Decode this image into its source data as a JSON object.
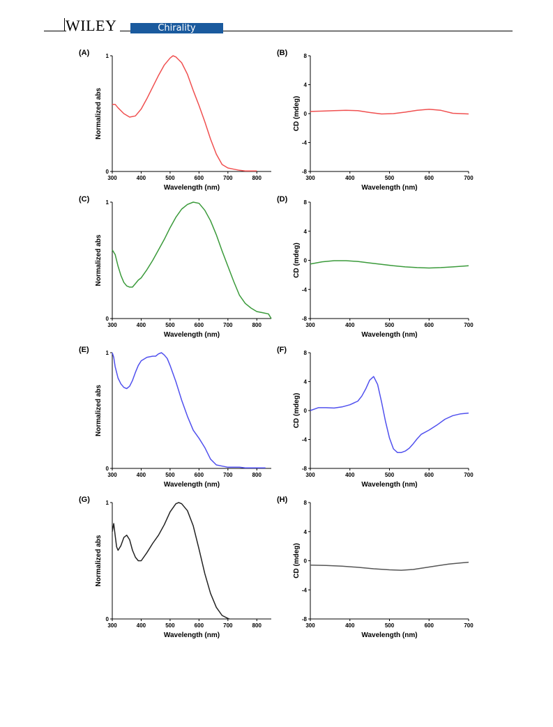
{
  "header": {
    "publisher": "WILEY",
    "journal": "Chirality",
    "colors": {
      "badge": "#1a5a9e",
      "rule": "#000000"
    }
  },
  "chart_data": [
    {
      "panel": "(A)",
      "type": "line",
      "xlabel": "Wavelength (nm)",
      "ylabel": "Normalized abs",
      "xlim": [
        300,
        850
      ],
      "ylim": [
        0,
        1
      ],
      "xticks": [
        300,
        400,
        500,
        600,
        700,
        800
      ],
      "yticks": [
        0,
        1
      ],
      "grid": false,
      "color": "#f05050",
      "series": [
        {
          "x": [
            300,
            310,
            320,
            340,
            360,
            380,
            400,
            420,
            440,
            460,
            480,
            500,
            510,
            520,
            540,
            560,
            580,
            600,
            620,
            640,
            660,
            680,
            700,
            720,
            740,
            760,
            780,
            800
          ],
          "y": [
            0.58,
            0.58,
            0.55,
            0.5,
            0.47,
            0.48,
            0.54,
            0.63,
            0.73,
            0.83,
            0.92,
            0.98,
            1.0,
            0.99,
            0.94,
            0.84,
            0.7,
            0.57,
            0.43,
            0.28,
            0.15,
            0.06,
            0.03,
            0.02,
            0.01,
            0.005,
            0.005,
            0.005
          ]
        }
      ]
    },
    {
      "panel": "(B)",
      "type": "line",
      "xlabel": "Wavelength (nm)",
      "ylabel": "CD (mdeg)",
      "xlim": [
        300,
        700
      ],
      "ylim": [
        -8,
        8
      ],
      "xticks": [
        300,
        400,
        500,
        600,
        700
      ],
      "yticks": [
        -8,
        -4,
        0,
        4,
        8
      ],
      "grid": false,
      "color": "#f05050",
      "series": [
        {
          "x": [
            300,
            330,
            360,
            390,
            420,
            450,
            480,
            510,
            540,
            570,
            600,
            630,
            660,
            700
          ],
          "y": [
            0.3,
            0.35,
            0.4,
            0.45,
            0.4,
            0.15,
            -0.05,
            0.0,
            0.2,
            0.45,
            0.6,
            0.45,
            0.05,
            -0.05
          ]
        }
      ]
    },
    {
      "panel": "(C)",
      "type": "line",
      "xlabel": "Wavelength (nm)",
      "ylabel": "Normalized abs",
      "xlim": [
        300,
        850
      ],
      "ylim": [
        0,
        1
      ],
      "xticks": [
        300,
        400,
        500,
        600,
        700,
        800
      ],
      "yticks": [
        0,
        1
      ],
      "grid": false,
      "color": "#3a9a3a",
      "series": [
        {
          "x": [
            300,
            310,
            320,
            330,
            340,
            350,
            360,
            370,
            380,
            390,
            400,
            420,
            440,
            460,
            480,
            500,
            520,
            540,
            560,
            580,
            600,
            620,
            640,
            660,
            680,
            700,
            720,
            740,
            760,
            780,
            800,
            820,
            840,
            850
          ],
          "y": [
            0.59,
            0.55,
            0.45,
            0.37,
            0.31,
            0.28,
            0.27,
            0.27,
            0.3,
            0.33,
            0.35,
            0.42,
            0.5,
            0.59,
            0.68,
            0.78,
            0.87,
            0.94,
            0.98,
            1.0,
            0.99,
            0.93,
            0.84,
            0.72,
            0.58,
            0.45,
            0.32,
            0.2,
            0.13,
            0.09,
            0.06,
            0.05,
            0.04,
            0.0
          ]
        }
      ]
    },
    {
      "panel": "(D)",
      "type": "line",
      "xlabel": "Wavelength (nm)",
      "ylabel": "CD (mdeg)",
      "xlim": [
        300,
        700
      ],
      "ylim": [
        -8,
        8
      ],
      "xticks": [
        300,
        400,
        500,
        600,
        700
      ],
      "yticks": [
        -8,
        -4,
        0,
        4,
        8
      ],
      "grid": false,
      "color": "#3a9a3a",
      "series": [
        {
          "x": [
            300,
            330,
            360,
            390,
            420,
            450,
            480,
            510,
            540,
            570,
            600,
            630,
            660,
            700
          ],
          "y": [
            -0.5,
            -0.2,
            -0.05,
            -0.05,
            -0.15,
            -0.35,
            -0.55,
            -0.75,
            -0.9,
            -1.0,
            -1.05,
            -1.0,
            -0.9,
            -0.75
          ]
        }
      ]
    },
    {
      "panel": "(E)",
      "type": "line",
      "xlabel": "Wavelength (nm)",
      "ylabel": "Normalized abs",
      "xlim": [
        300,
        850
      ],
      "ylim": [
        0,
        1
      ],
      "xticks": [
        300,
        400,
        500,
        600,
        700,
        800
      ],
      "yticks": [
        0,
        1
      ],
      "grid": false,
      "color": "#5050ee",
      "series": [
        {
          "x": [
            300,
            305,
            310,
            320,
            330,
            340,
            350,
            360,
            370,
            380,
            390,
            400,
            420,
            440,
            450,
            460,
            470,
            480,
            490,
            500,
            520,
            540,
            560,
            580,
            600,
            620,
            640,
            660,
            680,
            700,
            720,
            740,
            760,
            780,
            800,
            820,
            830
          ],
          "y": [
            1.0,
            0.96,
            0.88,
            0.78,
            0.73,
            0.7,
            0.69,
            0.71,
            0.76,
            0.83,
            0.89,
            0.93,
            0.96,
            0.97,
            0.97,
            0.99,
            1.0,
            0.98,
            0.95,
            0.89,
            0.75,
            0.59,
            0.45,
            0.33,
            0.26,
            0.18,
            0.08,
            0.03,
            0.02,
            0.01,
            0.01,
            0.01,
            0.005,
            0.005,
            0.005,
            0.005,
            0.005
          ]
        }
      ]
    },
    {
      "panel": "(F)",
      "type": "line",
      "xlabel": "Wavelength (nm)",
      "ylabel": "CD (mdeg)",
      "xlim": [
        300,
        700
      ],
      "ylim": [
        -8,
        8
      ],
      "xticks": [
        300,
        400,
        500,
        600,
        700
      ],
      "yticks": [
        -8,
        -4,
        0,
        4,
        8
      ],
      "grid": false,
      "color": "#5050ee",
      "series": [
        {
          "x": [
            300,
            320,
            340,
            360,
            380,
            400,
            420,
            430,
            440,
            450,
            460,
            470,
            480,
            490,
            500,
            510,
            520,
            530,
            540,
            550,
            560,
            570,
            580,
            600,
            620,
            640,
            660,
            680,
            700
          ],
          "y": [
            0.0,
            0.4,
            0.4,
            0.35,
            0.5,
            0.8,
            1.3,
            2.0,
            3.0,
            4.2,
            4.7,
            3.6,
            1.2,
            -1.5,
            -3.8,
            -5.3,
            -5.8,
            -5.8,
            -5.6,
            -5.2,
            -4.6,
            -3.9,
            -3.3,
            -2.7,
            -2.0,
            -1.2,
            -0.7,
            -0.45,
            -0.35
          ]
        }
      ]
    },
    {
      "panel": "(G)",
      "type": "line",
      "xlabel": "Wavelength (nm)",
      "ylabel": "Normalized abs",
      "xlim": [
        300,
        850
      ],
      "ylim": [
        0,
        1
      ],
      "xticks": [
        300,
        400,
        500,
        600,
        700,
        800
      ],
      "yticks": [
        0,
        1
      ],
      "grid": false,
      "color": "#222222",
      "series": [
        {
          "x": [
            300,
            305,
            310,
            315,
            320,
            330,
            340,
            350,
            360,
            370,
            380,
            390,
            400,
            420,
            440,
            460,
            480,
            500,
            520,
            530,
            540,
            560,
            580,
            600,
            620,
            640,
            660,
            680,
            700,
            705
          ],
          "y": [
            0.75,
            0.82,
            0.72,
            0.62,
            0.59,
            0.63,
            0.7,
            0.72,
            0.68,
            0.59,
            0.53,
            0.5,
            0.5,
            0.57,
            0.65,
            0.72,
            0.81,
            0.92,
            0.99,
            1.0,
            0.99,
            0.93,
            0.8,
            0.6,
            0.39,
            0.22,
            0.1,
            0.03,
            0.005,
            0.0
          ]
        }
      ]
    },
    {
      "panel": "(H)",
      "type": "line",
      "xlabel": "Wavelength (nm)",
      "ylabel": "CD (mdeg)",
      "xlim": [
        300,
        700
      ],
      "ylim": [
        -8,
        8
      ],
      "xticks": [
        300,
        400,
        500,
        600,
        700
      ],
      "yticks": [
        -8,
        -4,
        0,
        4,
        8
      ],
      "grid": false,
      "color": "#555555",
      "series": [
        {
          "x": [
            300,
            340,
            380,
            420,
            460,
            500,
            530,
            560,
            590,
            620,
            650,
            680,
            700
          ],
          "y": [
            -0.6,
            -0.65,
            -0.75,
            -0.9,
            -1.1,
            -1.25,
            -1.3,
            -1.2,
            -0.95,
            -0.7,
            -0.45,
            -0.3,
            -0.2
          ]
        }
      ]
    }
  ]
}
